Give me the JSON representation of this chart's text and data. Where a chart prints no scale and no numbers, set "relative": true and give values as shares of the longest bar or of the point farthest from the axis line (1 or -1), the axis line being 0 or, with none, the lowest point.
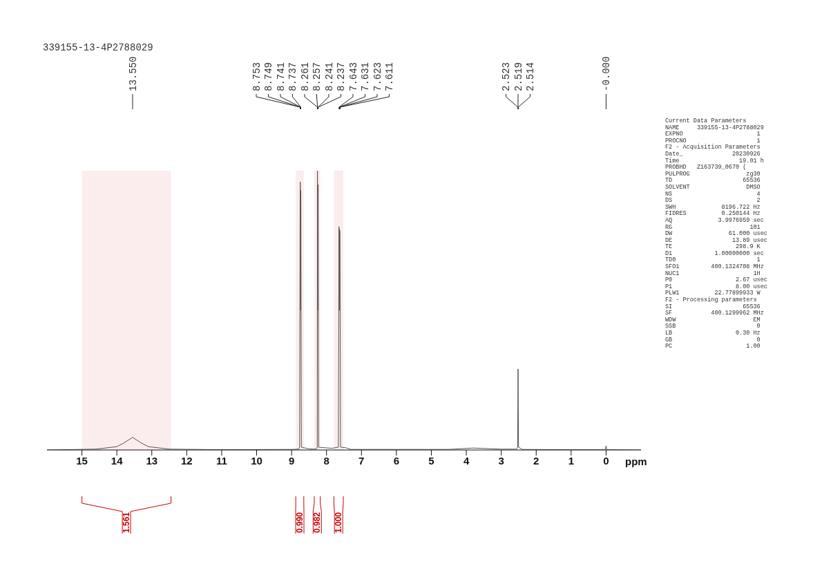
{
  "chart_data": {
    "type": "line",
    "title": "339155-13-4P2788029",
    "xlabel": "ppm",
    "relative": true,
    "tick_labels": "x",
    "grid": false,
    "legend": false,
    "marker": "none",
    "line_style": "solid",
    "xlim": [
      16,
      -1
    ],
    "xticks": [
      15,
      14,
      13,
      12,
      11,
      10,
      9,
      8,
      7,
      6,
      5,
      4,
      3,
      2,
      1,
      0
    ],
    "series": [
      {
        "color": "#555555",
        "x": [
          16,
          14.6,
          14.0,
          13.8,
          13.55,
          13.3,
          13.1,
          12.5,
          11,
          9,
          8.8,
          8.77,
          8.755,
          8.751,
          8.745,
          8.739,
          8.735,
          8.72,
          8.5,
          8.3,
          8.265,
          8.259,
          8.252,
          8.24,
          8.225,
          8.05,
          7.85,
          7.66,
          7.643,
          7.636,
          7.627,
          7.615,
          7.6,
          7.45,
          7.3,
          4.5,
          3.8,
          3.0,
          2.56,
          2.53,
          2.519,
          2.505,
          2.4,
          1,
          0.02,
          0,
          -0.02,
          -1
        ],
        "values": [
          0,
          0.003,
          0.012,
          0.025,
          0.045,
          0.025,
          0.012,
          0.003,
          0.001,
          0.002,
          0.003,
          0.01,
          0.9,
          0.96,
          0.5,
          0.93,
          0.9,
          0.01,
          0.004,
          0.003,
          0.01,
          1.0,
          0.5,
          0.95,
          0.01,
          0.008,
          0.006,
          0.01,
          0.8,
          0.5,
          0.79,
          0.78,
          0.01,
          0.008,
          0.002,
          0.002,
          0.007,
          0.003,
          0.003,
          0.01,
          0.29,
          0.01,
          0.002,
          0.001,
          0.001,
          0.015,
          0.001,
          0
        ]
      }
    ],
    "bands": [
      {
        "axis": "x",
        "from": 15,
        "to": 12.45,
        "label": "1.561",
        "color": "#cc0000"
      },
      {
        "axis": "x",
        "from": 8.88,
        "to": 8.65,
        "label": "0.990",
        "color": "#cc0000"
      },
      {
        "axis": "x",
        "from": 8.35,
        "to": 8.18,
        "label": "0.982",
        "color": "#cc0000"
      },
      {
        "axis": "x",
        "from": 7.79,
        "to": 7.52,
        "label": "1.000",
        "color": "#cc0000"
      }
    ],
    "annotations": [
      {
        "text": "13.550",
        "x": 13.55
      },
      {
        "text": "8.753",
        "x": 8.753
      },
      {
        "text": "8.749",
        "x": 8.749
      },
      {
        "text": "8.741",
        "x": 8.741
      },
      {
        "text": "8.737",
        "x": 8.737
      },
      {
        "text": "8.261",
        "x": 8.261
      },
      {
        "text": "8.257",
        "x": 8.257
      },
      {
        "text": "8.241",
        "x": 8.241
      },
      {
        "text": "8.237",
        "x": 8.237
      },
      {
        "text": "7.643",
        "x": 7.643
      },
      {
        "text": "7.631",
        "x": 7.631
      },
      {
        "text": "7.623",
        "x": 7.623
      },
      {
        "text": "7.611",
        "x": 7.611
      },
      {
        "text": "2.523",
        "x": 2.523
      },
      {
        "text": "2.519",
        "x": 2.519
      },
      {
        "text": "2.514",
        "x": 2.514
      },
      {
        "text": "-0.000",
        "x": 0
      },
      "Current Data Parameters",
      "NAME     339155-13-4P2788029",
      "EXPNO                     1",
      "PROCNO                    1",
      "F2 - Acquisition Parameters",
      "Date_              20230926",
      "Time                 19.01 h",
      "PROBHD   Z163739_0670 (",
      "PULPROG                zg30",
      "TD                    65536",
      "SOLVENT                DMSO",
      "NS                        4",
      "DS                        2",
      "SWH             8196.722 Hz",
      "FIDRES          0.250144 Hz",
      "AQ             3.9976959 sec",
      "RG                      101",
      "DW                61.000 usec",
      "DE                 13.89 usec",
      "TE                  298.9 K",
      "D1            1.00000000 sec",
      "TD0                       1",
      "SFO1         400.1324708 MHz",
      "NUC1                     1H",
      "P0                  2.67 usec",
      "P1                  8.00 usec",
      "PLW1          22.77899933 W",
      "F2 - Processing parameters",
      "SI                    65536",
      "SF           400.1299962 MHz",
      "WDW                      EM",
      "SSB                       0",
      "LB                  0.30 Hz",
      "GB                        0",
      "PC                     1.00"
    ]
  }
}
